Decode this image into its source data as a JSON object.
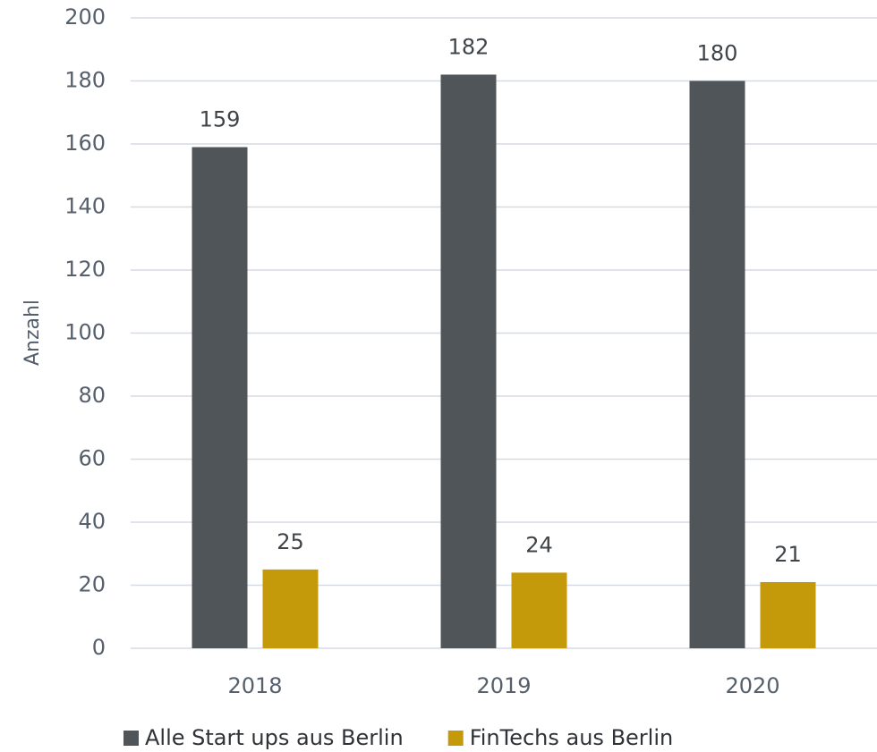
{
  "chart_data": {
    "type": "bar",
    "y_label": "Anzahl",
    "categories": [
      "2018",
      "2019",
      "2020"
    ],
    "series": [
      {
        "name": "Alle Start ups aus Berlin",
        "color": "#505559",
        "values": [
          159,
          182,
          180
        ]
      },
      {
        "name": "FinTechs aus Berlin",
        "color": "#c49a0a",
        "values": [
          25,
          24,
          21
        ]
      }
    ],
    "ylim": [
      0,
      200
    ],
    "yticks": [
      0,
      20,
      40,
      60,
      80,
      100,
      120,
      140,
      160,
      180,
      200
    ],
    "grid": true,
    "legend": "bottom"
  }
}
